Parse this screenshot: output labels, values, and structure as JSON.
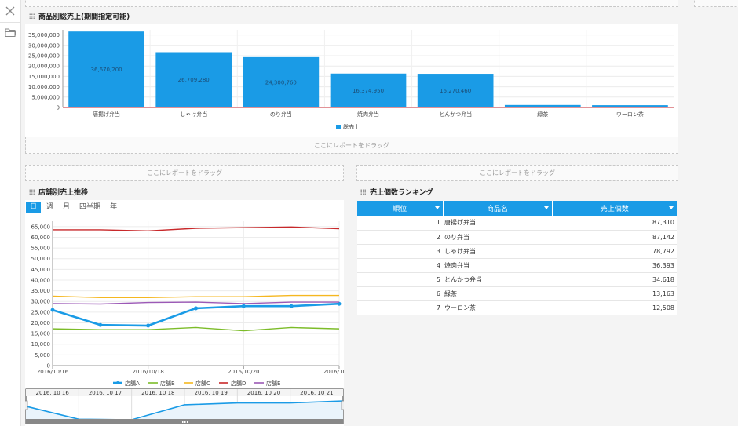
{
  "drop_label": "ここにレポートをドラッグ",
  "sales_chart": {
    "title": "商品別総売上(期間指定可能)",
    "legend": "総売上"
  },
  "trend_chart": {
    "title": "店舗別売上推移",
    "periods": [
      "日",
      "週",
      "月",
      "四半期",
      "年"
    ],
    "active_period": "日",
    "navigator_dates": [
      "2016. 10 16",
      "2016. 10 17",
      "2016. 10 18",
      "2016. 10 19",
      "2016. 10 20",
      "2016. 10 21"
    ]
  },
  "ranking": {
    "title": "売上個数ランキング",
    "headers": [
      "順位",
      "商品名",
      "売上個数"
    ],
    "rows": [
      {
        "rank": "1",
        "name": "唐揚げ弁当",
        "qty": "87,310"
      },
      {
        "rank": "2",
        "name": "のり弁当",
        "qty": "87,142"
      },
      {
        "rank": "3",
        "name": "しゃけ弁当",
        "qty": "78,792"
      },
      {
        "rank": "4",
        "name": "焼肉弁当",
        "qty": "36,393"
      },
      {
        "rank": "5",
        "name": "とんかつ弁当",
        "qty": "34,618"
      },
      {
        "rank": "6",
        "name": "緑茶",
        "qty": "13,163"
      },
      {
        "rank": "7",
        "name": "ウーロン茶",
        "qty": "12,508"
      }
    ]
  },
  "chart_data": [
    {
      "type": "bar",
      "title": "商品別総売上(期間指定可能)",
      "categories": [
        "唐揚げ弁当",
        "しゃけ弁当",
        "のり弁当",
        "焼肉弁当",
        "とんかつ弁当",
        "緑茶",
        "ウーロン茶"
      ],
      "series": [
        {
          "name": "総売上",
          "values": [
            36670200,
            26709280,
            24300760,
            16374950,
            16270460,
            1200000,
            1100000
          ],
          "color": "#1a9be6"
        }
      ],
      "data_labels": [
        "36,670,200",
        "26,709,280",
        "24,300,760",
        "16,374,950",
        "16,270,460",
        "",
        ""
      ],
      "ylim": [
        0,
        37500000
      ],
      "yticks": [
        0,
        5000000,
        10000000,
        15000000,
        20000000,
        25000000,
        30000000,
        35000000
      ],
      "ytick_labels": [
        "0",
        "5,000,000",
        "10,000,000",
        "15,000,000",
        "20,000,000",
        "25,000,000",
        "30,000,000",
        "35,000,000"
      ],
      "legend": "bottom",
      "grid": true
    },
    {
      "type": "line",
      "title": "店舗別売上推移",
      "x": [
        "2016-10-16",
        "2016-10-17",
        "2016-10-18",
        "2016-10-19",
        "2016-10-20",
        "2016-10-21",
        "2016-10-22"
      ],
      "xtick_labels": [
        "2016/10/16",
        "2016/10/18",
        "2016/10/20",
        "2016/10/22"
      ],
      "xtick_index": [
        0,
        2,
        4,
        6
      ],
      "series": [
        {
          "name": "店舗A",
          "color": "#1a9be6",
          "values": [
            26000,
            19000,
            18700,
            26800,
            27800,
            27800,
            28900
          ],
          "highlight": true
        },
        {
          "name": "店舗B",
          "color": "#7cbc29",
          "values": [
            17200,
            16800,
            16800,
            17800,
            16300,
            17800,
            17200
          ]
        },
        {
          "name": "店舗C",
          "color": "#f5b720",
          "values": [
            32500,
            31800,
            31800,
            32200,
            32200,
            32800,
            32800
          ]
        },
        {
          "name": "店舗D",
          "color": "#c8282a",
          "values": [
            63500,
            63500,
            63000,
            64200,
            64500,
            64800,
            64000
          ]
        },
        {
          "name": "店舗E",
          "color": "#9b59b6",
          "values": [
            29000,
            28800,
            29500,
            29700,
            29000,
            29700,
            29700
          ]
        }
      ],
      "ylim": [
        0,
        67500
      ],
      "yticks": [
        0,
        5000,
        10000,
        15000,
        20000,
        25000,
        30000,
        35000,
        40000,
        45000,
        50000,
        55000,
        60000,
        65000
      ],
      "ytick_labels": [
        "0",
        "5,000",
        "10,000",
        "15,000",
        "20,000",
        "25,000",
        "30,000",
        "35,000",
        "40,000",
        "45,000",
        "50,000",
        "55,000",
        "60,000",
        "65,000"
      ],
      "legend": "bottom",
      "grid": true
    }
  ]
}
